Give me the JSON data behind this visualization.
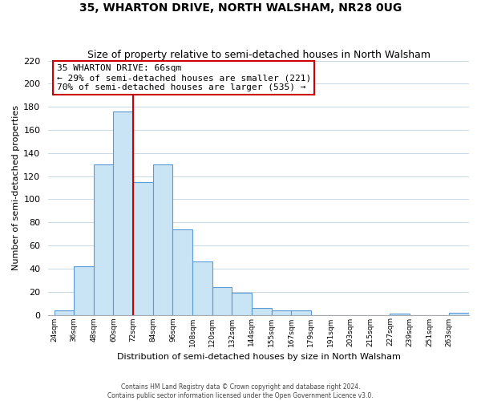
{
  "title": "35, WHARTON DRIVE, NORTH WALSHAM, NR28 0UG",
  "subtitle": "Size of property relative to semi-detached houses in North Walsham",
  "xlabel": "Distribution of semi-detached houses by size in North Walsham",
  "ylabel": "Number of semi-detached properties",
  "footer_line1": "Contains HM Land Registry data © Crown copyright and database right 2024.",
  "footer_line2": "Contains public sector information licensed under the Open Government Licence v3.0.",
  "bin_labels": [
    "24sqm",
    "36sqm",
    "48sqm",
    "60sqm",
    "72sqm",
    "84sqm",
    "96sqm",
    "108sqm",
    "120sqm",
    "132sqm",
    "144sqm",
    "155sqm",
    "167sqm",
    "179sqm",
    "191sqm",
    "203sqm",
    "215sqm",
    "227sqm",
    "239sqm",
    "251sqm",
    "263sqm"
  ],
  "bar_heights": [
    4,
    42,
    130,
    176,
    115,
    130,
    74,
    46,
    24,
    19,
    6,
    4,
    4,
    0,
    0,
    0,
    0,
    1,
    0,
    0,
    2
  ],
  "bar_color": "#c8e4f5",
  "bar_edge_color": "#5b9bd5",
  "annotation_title": "35 WHARTON DRIVE: 66sqm",
  "annotation_line1": "← 29% of semi-detached houses are smaller (221)",
  "annotation_line2": "70% of semi-detached houses are larger (535) →",
  "annotation_box_color": "#ffffff",
  "annotation_box_edge": "#cc0000",
  "red_line_color": "#cc0000",
  "red_line_bar_index": 4,
  "ylim": [
    0,
    220
  ],
  "yticks": [
    0,
    20,
    40,
    60,
    80,
    100,
    120,
    140,
    160,
    180,
    200,
    220
  ],
  "background_color": "#ffffff",
  "grid_color": "#c8d8e8"
}
